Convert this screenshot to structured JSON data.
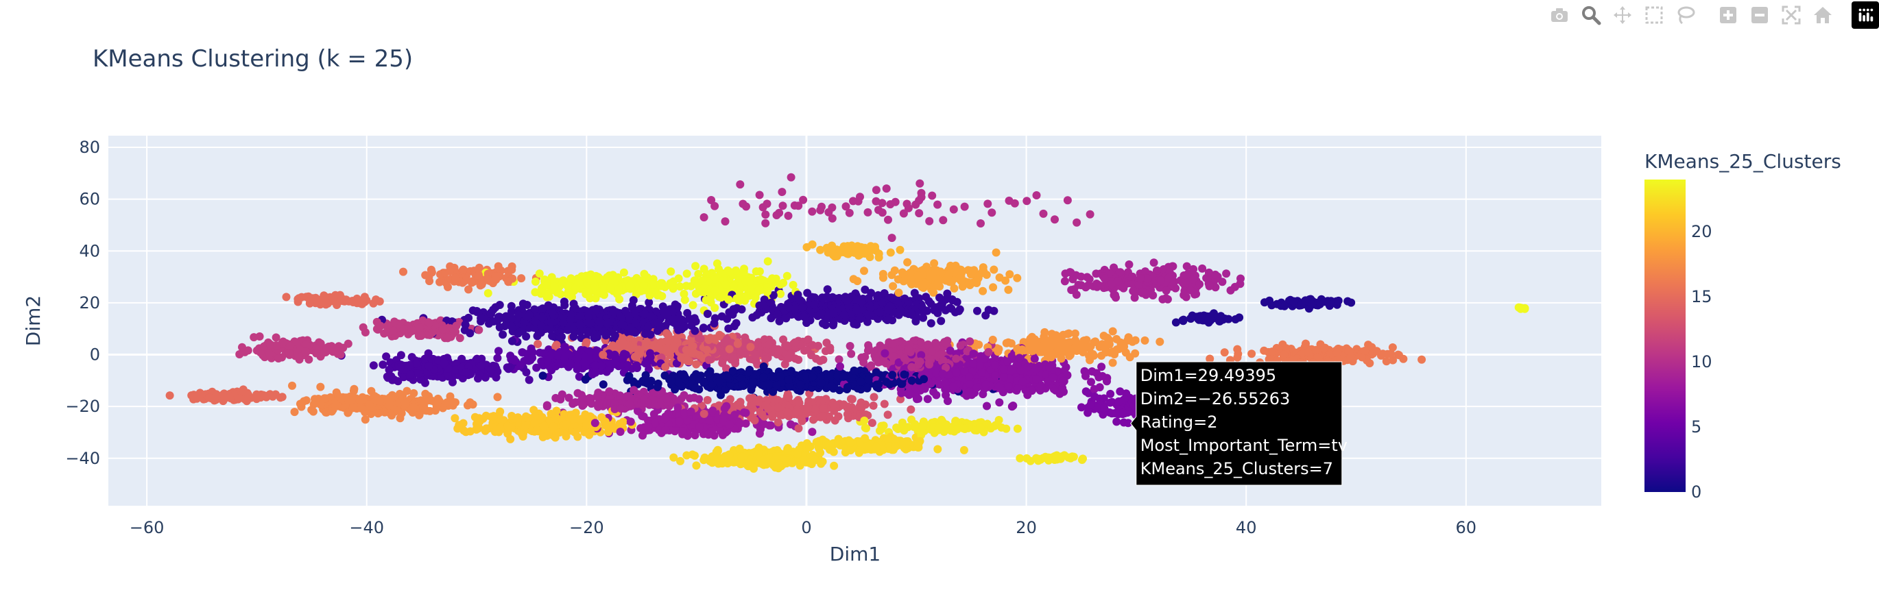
{
  "modebar": {
    "buttons": [
      "camera-icon",
      "zoom-icon",
      "pan-icon",
      "box-select-icon",
      "lasso-select-icon",
      "zoom-in-icon",
      "zoom-out-icon",
      "autoscale-icon",
      "home-icon"
    ],
    "icon_color": "#c7c7c7",
    "active_color": "#7f7f7f",
    "logo": "plotly-logo-icon"
  },
  "chart_data": {
    "type": "scatter",
    "title": "KMeans Clustering (k = 25)",
    "xlabel": "Dim1",
    "ylabel": "Dim2",
    "xlim": [
      -63.5,
      72.3
    ],
    "ylim": [
      -58.3,
      84.5
    ],
    "xticks": [
      -60,
      -40,
      -20,
      0,
      20,
      40,
      60
    ],
    "xtick_labels": [
      "−60",
      "−40",
      "−20",
      "0",
      "20",
      "40",
      "60"
    ],
    "yticks": [
      -40,
      -20,
      0,
      20,
      40,
      60,
      80
    ],
    "ytick_labels": [
      "−40",
      "−20",
      "0",
      "20",
      "40",
      "60",
      "80"
    ],
    "grid": true,
    "plot_bgcolor": "#e5ecf6",
    "colorscale": "plasma",
    "colorbar": {
      "title": "KMeans_25_Clusters",
      "range": [
        0,
        24
      ],
      "ticks": [
        0,
        5,
        10,
        15,
        20
      ],
      "tick_labels": [
        "0",
        "5",
        "10",
        "15",
        "20"
      ]
    },
    "clusters": [
      {
        "label": 0,
        "center": [
          -1,
          -10
        ],
        "spread": [
          12,
          3
        ],
        "n": 650
      },
      {
        "label": 1,
        "center": [
          46,
          20
        ],
        "spread": [
          2.7,
          1.4
        ],
        "n": 70
      },
      {
        "label": 1,
        "center": [
          36,
          14
        ],
        "spread": [
          3,
          1.5
        ],
        "n": 40
      },
      {
        "label": 2,
        "center": [
          -20,
          13
        ],
        "spread": [
          9,
          5
        ],
        "n": 550
      },
      {
        "label": 2,
        "center": [
          4,
          18
        ],
        "spread": [
          8,
          5
        ],
        "n": 400
      },
      {
        "label": 3,
        "center": [
          -33,
          -5
        ],
        "spread": [
          5,
          4
        ],
        "n": 250
      },
      {
        "label": 4,
        "center": [
          -20,
          -2
        ],
        "spread": [
          6,
          4
        ],
        "n": 250
      },
      {
        "label": 6,
        "center": [
          30,
          -20
        ],
        "spread": [
          4,
          5
        ],
        "n": 180
      },
      {
        "label": 7,
        "center": [
          16,
          -8
        ],
        "spread": [
          8,
          7
        ],
        "n": 550
      },
      {
        "label": 8,
        "center": [
          -10,
          -26
        ],
        "spread": [
          6,
          4
        ],
        "n": 250
      },
      {
        "label": 9,
        "center": [
          -16,
          -18
        ],
        "spread": [
          5,
          3
        ],
        "n": 200
      },
      {
        "label": 9,
        "center": [
          31,
          28
        ],
        "spread": [
          6,
          5
        ],
        "n": 220
      },
      {
        "label": 10,
        "center": [
          10,
          0
        ],
        "spread": [
          5,
          5
        ],
        "n": 200
      },
      {
        "label": 10,
        "center": [
          6,
          58
        ],
        "spread": [
          16,
          8
        ],
        "n": 70
      },
      {
        "label": 11,
        "center": [
          -35,
          10
        ],
        "spread": [
          4,
          3
        ],
        "n": 120
      },
      {
        "label": 11,
        "center": [
          -47,
          2
        ],
        "spread": [
          4,
          3
        ],
        "n": 160
      },
      {
        "label": 12,
        "center": [
          -6,
          2
        ],
        "spread": [
          7,
          4
        ],
        "n": 250
      },
      {
        "label": 13,
        "center": [
          -1,
          -21
        ],
        "spread": [
          7,
          4
        ],
        "n": 250
      },
      {
        "label": 14,
        "center": [
          -13,
          2
        ],
        "spread": [
          7,
          5
        ],
        "n": 300
      },
      {
        "label": 15,
        "center": [
          -43,
          21
        ],
        "spread": [
          3.5,
          1.5
        ],
        "n": 70
      },
      {
        "label": 15,
        "center": [
          -52,
          -16
        ],
        "spread": [
          3.5,
          1.8
        ],
        "n": 90
      },
      {
        "label": 16,
        "center": [
          -30,
          30
        ],
        "spread": [
          4,
          3
        ],
        "n": 100
      },
      {
        "label": 16,
        "center": [
          47,
          0
        ],
        "spread": [
          6,
          3
        ],
        "n": 200
      },
      {
        "label": 17,
        "center": [
          -39,
          -19
        ],
        "spread": [
          6,
          4
        ],
        "n": 250
      },
      {
        "label": 18,
        "center": [
          23,
          3
        ],
        "spread": [
          6,
          4
        ],
        "n": 200
      },
      {
        "label": 19,
        "center": [
          12,
          30
        ],
        "spread": [
          5,
          4
        ],
        "n": 160
      },
      {
        "label": 20,
        "center": [
          4,
          40
        ],
        "spread": [
          3,
          2
        ],
        "n": 70
      },
      {
        "label": 21,
        "center": [
          -24,
          -27
        ],
        "spread": [
          6,
          4
        ],
        "n": 250
      },
      {
        "label": 22,
        "center": [
          -4,
          -40
        ],
        "spread": [
          5,
          3
        ],
        "n": 220
      },
      {
        "label": 22,
        "center": [
          6,
          -35
        ],
        "spread": [
          5,
          2.5
        ],
        "n": 150
      },
      {
        "label": 23,
        "center": [
          22,
          -40
        ],
        "spread": [
          2,
          1
        ],
        "n": 40
      },
      {
        "label": 23,
        "center": [
          12,
          -28
        ],
        "spread": [
          5,
          2.5
        ],
        "n": 100
      },
      {
        "label": 24,
        "center": [
          -18,
          27
        ],
        "spread": [
          6,
          4
        ],
        "n": 220
      },
      {
        "label": 24,
        "center": [
          -7,
          27
        ],
        "spread": [
          4,
          6
        ],
        "n": 180
      },
      {
        "label": 24,
        "center": [
          65,
          18
        ],
        "spread": [
          0.5,
          0.4
        ],
        "n": 6
      }
    ],
    "hover": {
      "point": [
        29.49395,
        -26.55263
      ],
      "lines": [
        "Dim1=29.49395",
        "Dim2=−26.55263",
        "Rating=2",
        "Most_Important_Term=tv",
        "KMeans_25_Clusters=7"
      ],
      "bgcolor": "#000000",
      "font_color": "#ffffff"
    }
  }
}
